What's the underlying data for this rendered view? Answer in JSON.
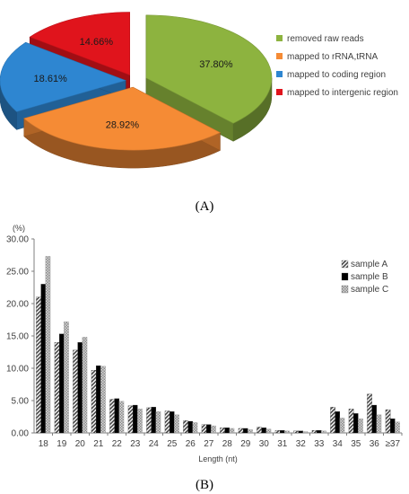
{
  "colors": {
    "removed": "#8DB33F",
    "rrna": "#F58B35",
    "coding": "#2E86D1",
    "intergenic": "#E0141C",
    "text": "#404040",
    "axis": "#7f7f7f",
    "sampleA": "#555555",
    "sampleB": "#000000",
    "sampleC": "#b5b5b5"
  },
  "panel_a": {
    "label": "(A)",
    "chart_data": {
      "type": "pie",
      "slices": [
        {
          "key": "removed",
          "name": "removed raw reads",
          "value": 37.8,
          "label": "37.80%"
        },
        {
          "key": "rrna",
          "name": "mapped to rRNA,tRNA",
          "value": 28.92,
          "label": "28.92%"
        },
        {
          "key": "coding",
          "name": "mapped to coding region",
          "value": 18.61,
          "label": "18.61%"
        },
        {
          "key": "intergenic",
          "name": "mapped to intergenic region",
          "value": 14.66,
          "label": "14.66%"
        }
      ],
      "legend_position": "right"
    }
  },
  "panel_b": {
    "label": "(B)",
    "chart_data": {
      "type": "bar",
      "ylabel": "(%)",
      "xlabel": "Length (nt)",
      "ylim": [
        0,
        30
      ],
      "yticks": [
        "0.00",
        "5.00",
        "10.00",
        "15.00",
        "20.00",
        "25.00",
        "30.00"
      ],
      "categories": [
        "18",
        "19",
        "20",
        "21",
        "22",
        "23",
        "24",
        "25",
        "26",
        "27",
        "28",
        "29",
        "30",
        "31",
        "32",
        "33",
        "34",
        "35",
        "36",
        "≥37"
      ],
      "series": [
        {
          "name": "sample A",
          "key": "sampleA",
          "values": [
            21.0,
            14.0,
            12.8,
            9.7,
            5.2,
            4.2,
            3.9,
            3.4,
            1.9,
            1.3,
            0.8,
            0.7,
            0.9,
            0.4,
            0.3,
            0.4,
            4.0,
            3.7,
            6.0,
            3.6
          ]
        },
        {
          "name": "sample B",
          "key": "sampleB",
          "values": [
            23.0,
            15.3,
            14.0,
            10.4,
            5.3,
            4.3,
            4.0,
            3.3,
            1.8,
            1.3,
            0.8,
            0.7,
            0.8,
            0.4,
            0.3,
            0.4,
            3.3,
            3.0,
            4.3,
            2.2
          ]
        },
        {
          "name": "sample C",
          "key": "sampleC",
          "values": [
            27.3,
            17.2,
            14.8,
            10.3,
            4.9,
            3.7,
            3.3,
            2.8,
            1.6,
            1.1,
            0.7,
            0.5,
            0.6,
            0.3,
            0.2,
            0.3,
            2.3,
            2.2,
            2.8,
            1.7
          ]
        }
      ],
      "legend_position": "top-right"
    }
  }
}
